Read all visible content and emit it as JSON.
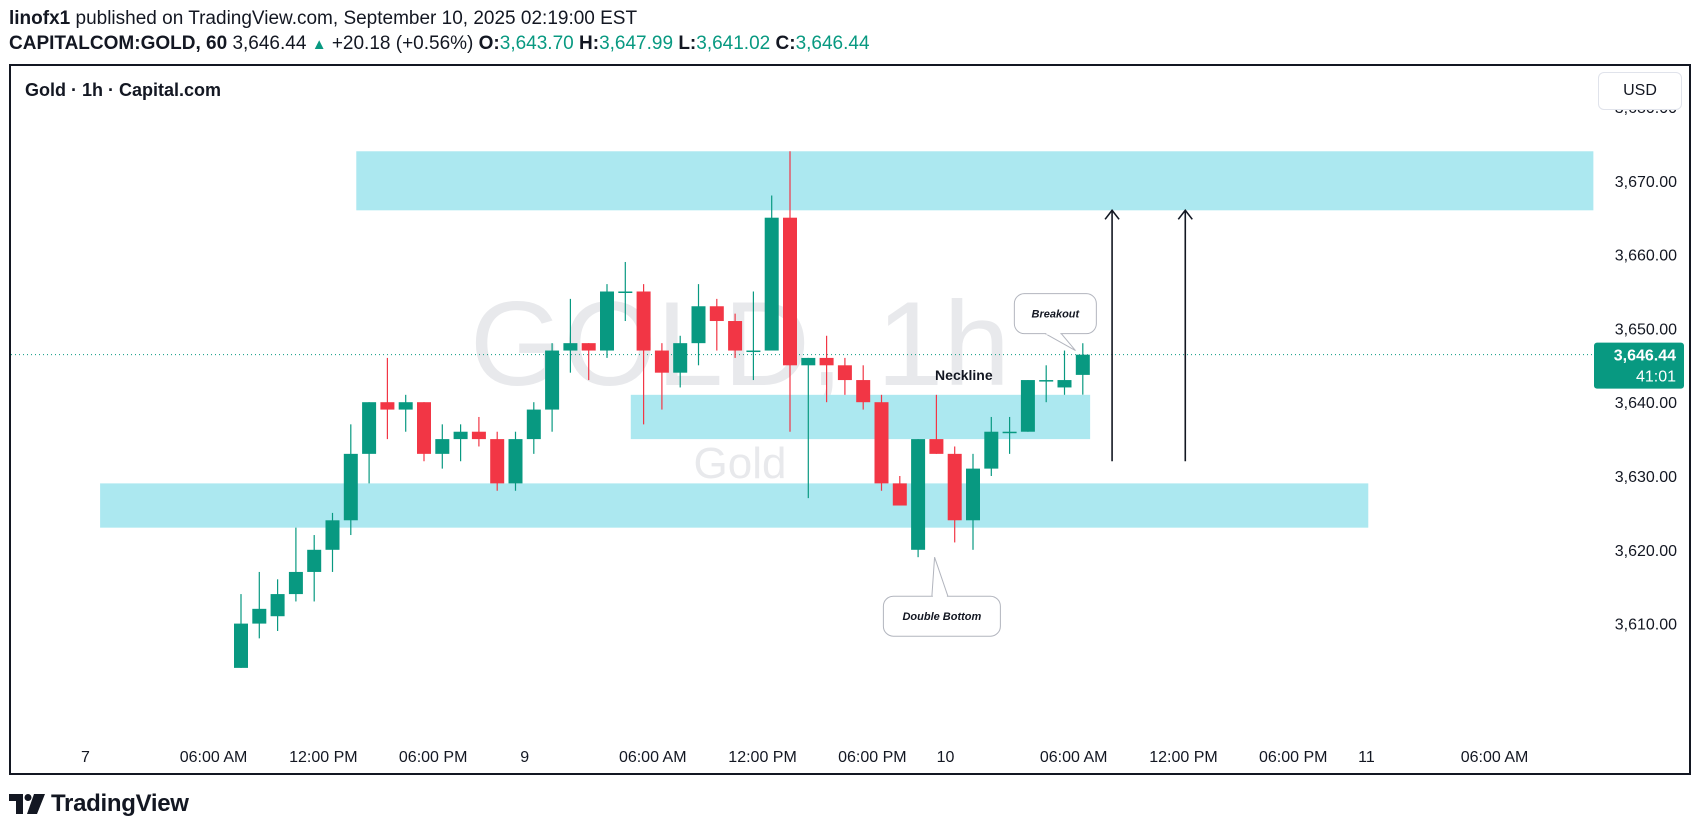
{
  "header": {
    "publisher": "linofx1",
    "published_text": " published on TradingView.com, September 10, 2025 02:19:00 EST",
    "symbol": "CAPITALCOM:GOLD, 60",
    "last": "3,646.44",
    "change": "+20.18 (+0.56%)",
    "o_label": "O:",
    "o_val": "3,643.70",
    "h_label": "H:",
    "h_val": "3,647.99",
    "l_label": "L:",
    "l_val": "3,641.02",
    "c_label": "C:",
    "c_val": "3,646.44"
  },
  "chart_title": "Gold · 1h · Capital.com",
  "currency": "USD",
  "watermark": {
    "big": "GOLD, 1h",
    "small": "Gold"
  },
  "price_label": {
    "price": "3,646.44",
    "countdown": "41:01"
  },
  "footer": {
    "brand": "TradingView"
  },
  "colors": {
    "up": "#089981",
    "down": "#f23645",
    "zone": "#a8e7ef",
    "price_line": "#089981"
  },
  "chart_data": {
    "type": "candlestick",
    "ylim": [
      3602,
      3682
    ],
    "y_ticks": [
      3680,
      3670,
      3660,
      3650,
      3640,
      3630,
      3620,
      3610
    ],
    "y_tick_labels": [
      "3,680.00",
      "3,670.00",
      "3,660.00",
      "3,650.00",
      "3,640.00",
      "3,630.00",
      "3,620.00",
      "3,610.00"
    ],
    "x_labels": [
      {
        "bar": -8.5,
        "text": "7"
      },
      {
        "bar": -1.5,
        "text": "06:00 AM"
      },
      {
        "bar": 4.5,
        "text": "12:00 PM"
      },
      {
        "bar": 10.5,
        "text": "06:00 PM"
      },
      {
        "bar": 15.5,
        "text": "9"
      },
      {
        "bar": 22.5,
        "text": "06:00 AM"
      },
      {
        "bar": 28.5,
        "text": "12:00 PM"
      },
      {
        "bar": 34.5,
        "text": "06:00 PM"
      },
      {
        "bar": 38.5,
        "text": "10"
      },
      {
        "bar": 45.5,
        "text": "06:00 AM"
      },
      {
        "bar": 51.5,
        "text": "12:00 PM"
      },
      {
        "bar": 57.5,
        "text": "06:00 PM"
      },
      {
        "bar": 61.5,
        "text": "11"
      },
      {
        "bar": 68.5,
        "text": "06:00 AM"
      }
    ],
    "candles": [
      [
        3604,
        3610,
        3604,
        3614
      ],
      [
        3610,
        3612,
        3608,
        3617
      ],
      [
        3611,
        3614,
        3609,
        3616
      ],
      [
        3614,
        3617,
        3613,
        3623
      ],
      [
        3617,
        3620,
        3613,
        3622
      ],
      [
        3620,
        3624,
        3617,
        3625
      ],
      [
        3624,
        3633,
        3622,
        3637
      ],
      [
        3633,
        3640,
        3629,
        3640
      ],
      [
        3640,
        3639,
        3635,
        3646
      ],
      [
        3639,
        3640,
        3636,
        3641
      ],
      [
        3640,
        3633,
        3632,
        3640
      ],
      [
        3633,
        3635,
        3631,
        3637
      ],
      [
        3635,
        3636,
        3632,
        3637
      ],
      [
        3636,
        3635,
        3634,
        3638
      ],
      [
        3635,
        3629,
        3628,
        3636
      ],
      [
        3629,
        3635,
        3628,
        3636
      ],
      [
        3635,
        3639,
        3633,
        3640
      ],
      [
        3639,
        3647,
        3636,
        3648
      ],
      [
        3647,
        3648,
        3644,
        3654
      ],
      [
        3648,
        3647,
        3643,
        3648
      ],
      [
        3647,
        3655,
        3646,
        3656
      ],
      [
        3655,
        3655,
        3651,
        3659
      ],
      [
        3655,
        3647,
        3637,
        3656
      ],
      [
        3647,
        3644,
        3639,
        3648
      ],
      [
        3644,
        3648,
        3642,
        3649
      ],
      [
        3648,
        3653,
        3645,
        3656
      ],
      [
        3653,
        3651,
        3647,
        3654
      ],
      [
        3651,
        3647,
        3646,
        3652
      ],
      [
        3647,
        3647,
        3643,
        3655
      ],
      [
        3647,
        3665,
        3647,
        3668
      ],
      [
        3665,
        3645,
        3636,
        3674
      ],
      [
        3645,
        3646,
        3627,
        3646
      ],
      [
        3646,
        3645,
        3640,
        3649
      ],
      [
        3645,
        3643,
        3641,
        3646
      ],
      [
        3643,
        3640,
        3639,
        3645
      ],
      [
        3640,
        3629,
        3628,
        3641
      ],
      [
        3629,
        3626,
        3626,
        3630
      ],
      [
        3620,
        3635,
        3619,
        3635
      ],
      [
        3635,
        3633,
        3633,
        3641
      ],
      [
        3633,
        3624,
        3621,
        3634
      ],
      [
        3624,
        3631,
        3620,
        3633
      ],
      [
        3631,
        3636,
        3630,
        3638
      ],
      [
        3636,
        3636,
        3633,
        3638
      ],
      [
        3636,
        3643,
        3636,
        3643
      ],
      [
        3643,
        3643,
        3640,
        3645
      ],
      [
        3642,
        3643,
        3641,
        3647
      ],
      [
        3643.7,
        3646.44,
        3641.02,
        3647.99
      ]
    ],
    "zones": [
      {
        "bar_from": 6.3,
        "bar_to": 73.9,
        "y_from": 3666,
        "y_to": 3674
      },
      {
        "bar_from": 21.3,
        "bar_to": 46.4,
        "y_from": 3635,
        "y_to": 3641
      },
      {
        "bar_from": -7.7,
        "bar_to": 61.6,
        "y_from": 3623,
        "y_to": 3629
      }
    ],
    "arrows": [
      {
        "bar": 47.6,
        "y_from": 3632,
        "y_to": 3666
      },
      {
        "bar": 51.6,
        "y_from": 3632,
        "y_to": 3666
      }
    ],
    "annotations": [
      {
        "text": "Neckline",
        "style": "label",
        "bar": 39.5,
        "y": 3643
      },
      {
        "text": "Breakout",
        "style": "callout",
        "bar": 44.5,
        "y": 3652,
        "tip_bar": 45.6,
        "tip_y": 3647
      },
      {
        "text": "Double Bottom",
        "style": "callout",
        "bar": 38.3,
        "y": 3611,
        "tip_bar": 37.9,
        "tip_y": 3619
      }
    ],
    "current_price": 3646.44
  }
}
